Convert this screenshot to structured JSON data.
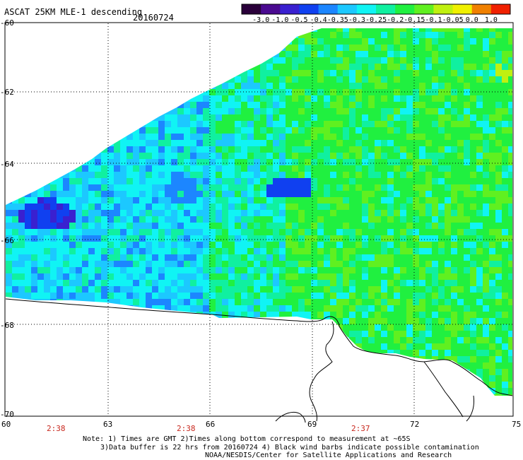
{
  "title": "ASCAT 25KM MLE-1 descending",
  "date": "20160724",
  "colorbar": {
    "labels": [
      "-3.0",
      "-1.0",
      "-0.5",
      "-0.4",
      "-0.35",
      "-0.3",
      "-0.25",
      "-0.2",
      "-0.15",
      "-0.1",
      "-0.05",
      "0.0",
      "1.0"
    ],
    "colors": [
      "#2a003a",
      "#4a0a90",
      "#3a20d0",
      "#1040f0",
      "#1c86ff",
      "#1cc8ff",
      "#10f4f4",
      "#10f0a0",
      "#20f040",
      "#60f020",
      "#c0f010",
      "#f0f000",
      "#f08000",
      "#f02000"
    ]
  },
  "lat_labels": [
    "-60",
    "-62",
    "-64",
    "-66",
    "-68",
    "-70"
  ],
  "lon_labels": [
    "60",
    "63",
    "66",
    "69",
    "72",
    "75"
  ],
  "times": [
    "2:38",
    "2:38",
    "2:37"
  ],
  "notes": [
    "Note: 1) Times are GMT 2)Times along bottom correspond to measurement at ~65S",
    "3)Data buffer is 22 hrs from 20160724 4) Black wind barbs indicate possible contamination",
    "NOAA/NESDIS/Center for Satellite Applications and Research"
  ]
}
